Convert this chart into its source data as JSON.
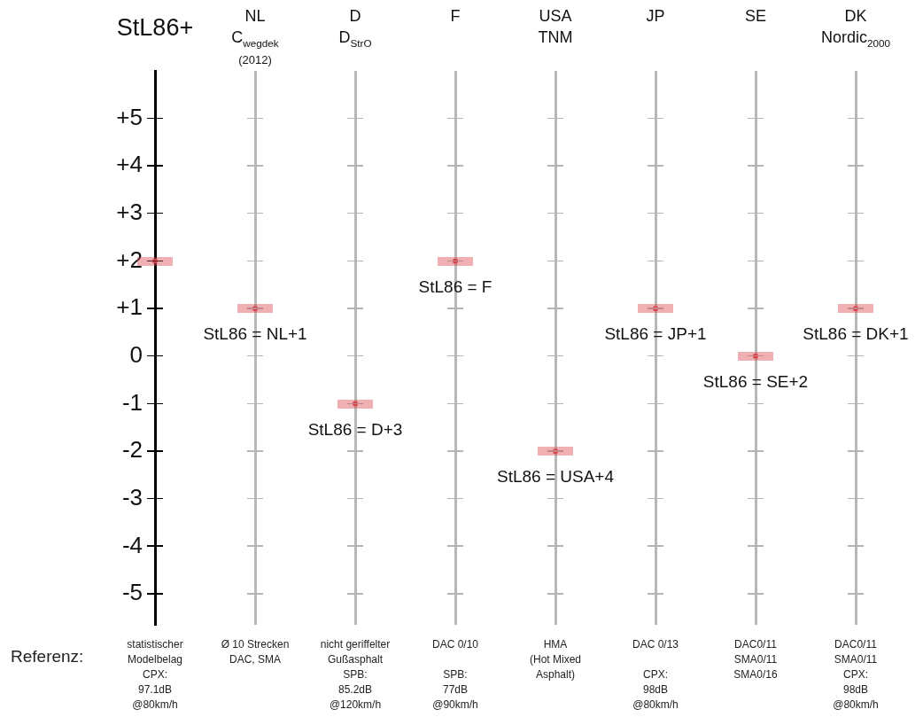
{
  "chart_data": {
    "type": "scatter",
    "categories": [
      "StL86+",
      "NL\nC$_{wegdek}$\n(2012)",
      "D\nD$_{StrO}$",
      "F",
      "USA\nTNM",
      "JP",
      "SE",
      "DK\nNordic$_{2000}$"
    ],
    "values": [
      2,
      1,
      -1,
      2,
      -2,
      1,
      0,
      1
    ],
    "color": "#d9434a",
    "marker": "square",
    "ylim": [
      -5.65,
      6
    ],
    "yticks": [
      {
        "value": 5,
        "label": "+5"
      },
      {
        "value": 4,
        "label": "+4"
      },
      {
        "value": 3,
        "label": "+3"
      },
      {
        "value": 2,
        "label": "+2"
      },
      {
        "value": 1,
        "label": "+1"
      },
      0,
      -1,
      -2,
      -3,
      -4,
      -5
    ],
    "grid": "x",
    "annotations": [
      {
        "text": "StL86 = NL+1",
        "x": "NL\nC$_{wegdek}$\n(2012)",
        "y": 1
      },
      {
        "text": "StL86 = D+3",
        "x": "D\nD$_{StrO}$",
        "y": -1
      },
      {
        "text": "StL86 = F",
        "x": "F",
        "y": 2
      },
      {
        "text": "StL86 = USA+4",
        "x": "USA\nTNM",
        "y": -2
      },
      {
        "text": "StL86 = JP+1",
        "x": "JP",
        "y": 1
      },
      {
        "text": "StL86 = SE+2",
        "x": "SE",
        "y": 0
      },
      {
        "text": "StL86 = DK+1",
        "x": "DK\nNordic$_{2000}$",
        "y": 1
      },
      "Referenz:",
      "statistischer\nModelbelag\nCPX:\n97.1dB\n@80km/h",
      "Ø 10 Strecken\nDAC, SMA",
      "nicht geriffelter\nGußasphalt\nSPB:\n85.2dB\n@120km/h",
      "DAC 0/10\n\nSPB:\n77dB\n@90km/h",
      "HMA\n(Hot Mixed\nAsphalt)",
      "DAC 0/13\n\nCPX:\n98dB\n@80km/h",
      "DAC0/11\nSMA0/11\nSMA0/16",
      "DAC0/11\nSMA0/11\nCPX:\n98dB\n@80km/h"
    ]
  }
}
